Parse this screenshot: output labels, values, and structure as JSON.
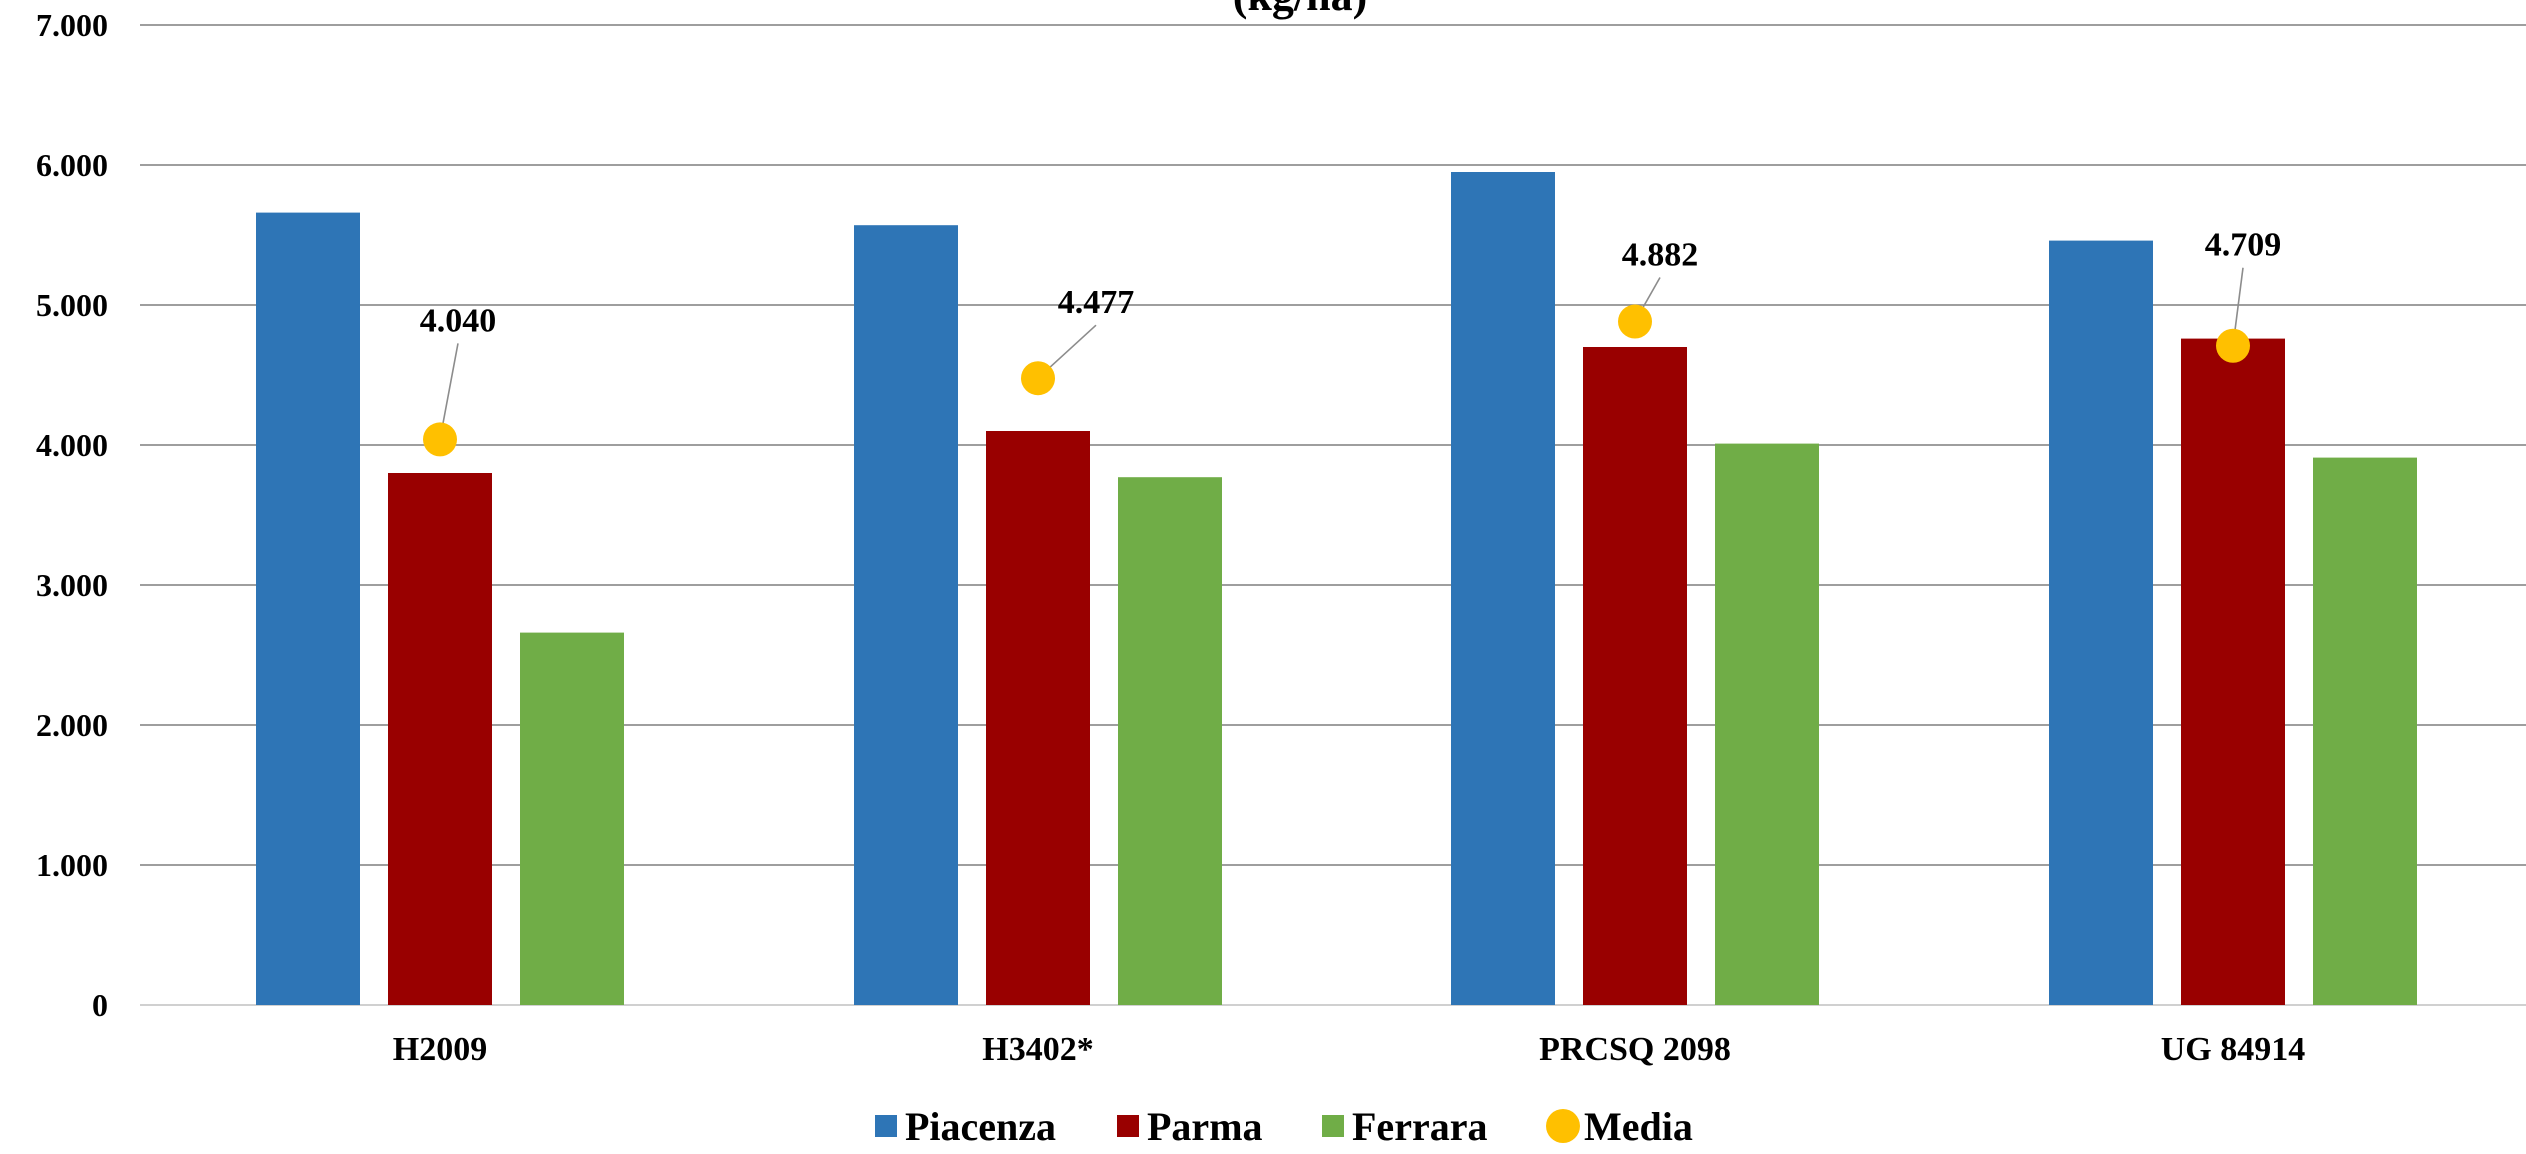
{
  "chart_data": {
    "type": "bar",
    "title": "(kg/ha)",
    "xlabel": "",
    "ylabel": "",
    "categories": [
      "H2009",
      "H3402*",
      "PRCSQ 2098",
      "UG 84914"
    ],
    "series": [
      {
        "name": "Piacenza",
        "values": [
          5660,
          5570,
          5950,
          5460
        ],
        "color": "#2E75B6"
      },
      {
        "name": "Parma",
        "values": [
          3800,
          4100,
          4700,
          4760
        ],
        "color": "#990000"
      },
      {
        "name": "Ferrara",
        "values": [
          2660,
          3770,
          4010,
          3910
        ],
        "color": "#70AD47"
      }
    ],
    "mean_series": {
      "name": "Media",
      "values": [
        4040,
        4477,
        4882,
        4709
      ],
      "labels": [
        "4.040",
        "4.477",
        "4.882",
        "4.709"
      ],
      "color": "#FFC000"
    },
    "ylim": [
      0,
      7000
    ],
    "yticks": [
      0,
      1000,
      2000,
      3000,
      4000,
      5000,
      6000,
      7000
    ],
    "ytick_labels": [
      "0",
      "1.000",
      "2.000",
      "3.000",
      "4.000",
      "5.000",
      "6.000",
      "7.000"
    ],
    "grid": true,
    "legend_position": "bottom"
  }
}
